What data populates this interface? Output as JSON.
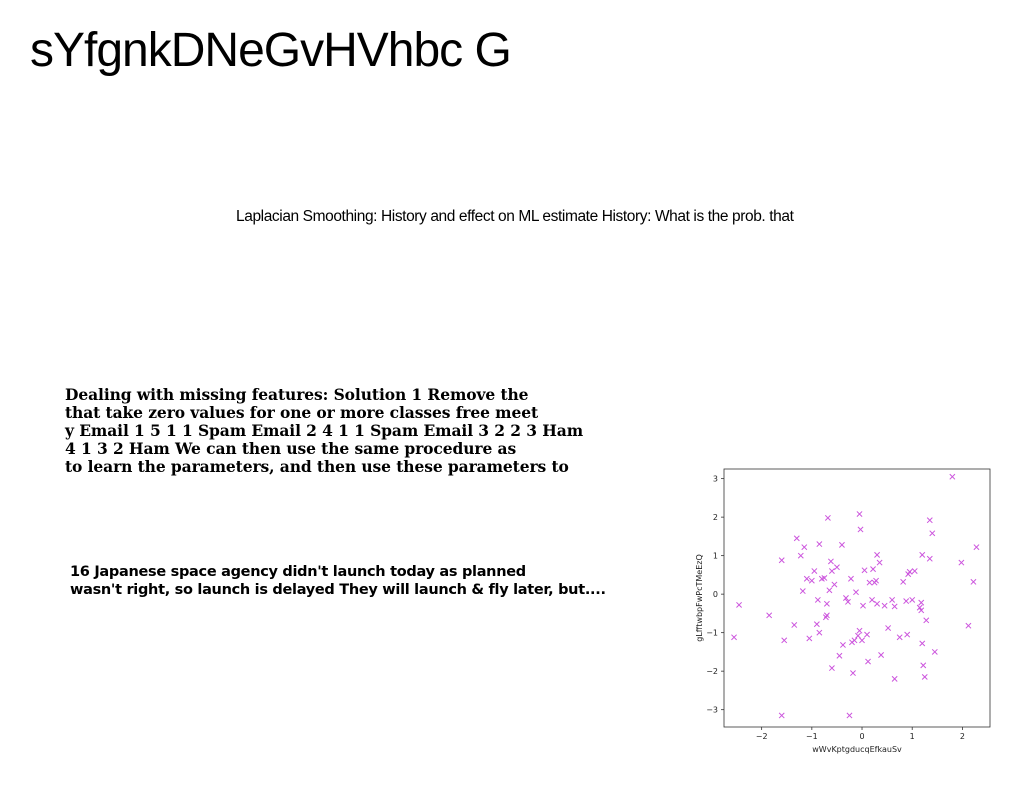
{
  "title": "sYfgnkDNeGvHVhbc G",
  "subtitle": "Laplacian Smoothing: History and effect on ML estimate History: What is the prob. that",
  "missing_features": {
    "lines": [
      "Dealing with missing features: Solution 1 Remove the",
      "that take zero values for one or more classes free meet",
      "y Email 1 5 1 1 Spam Email 2 4 1 1 Spam Email 3 2 2 3 Ham",
      "4 1 3 2 Ham We can then use the same procedure as",
      "to learn the parameters, and then use these parameters to"
    ]
  },
  "space_agency": {
    "lines": [
      "16 Japanese space agency didn't launch today as planned",
      "wasn't right, so launch is delayed They will launch & fly later, but...."
    ]
  },
  "chart_data": {
    "type": "scatter",
    "marker": "x",
    "color": "#cc55dd",
    "xlabel": "wWvKptgducqEfkauSv",
    "ylabel": "gLfftwbpFwPcTMeEzQ",
    "xlim": [
      -2.75,
      2.55
    ],
    "ylim": [
      -3.45,
      3.25
    ],
    "xticks": [
      -2,
      -1,
      0,
      1,
      2
    ],
    "yticks": [
      -3,
      -2,
      -1,
      0,
      1,
      2,
      3
    ],
    "xtick_labels": [
      "−2",
      "−1",
      "0",
      "1",
      "2"
    ],
    "ytick_labels": [
      "−3",
      "−2",
      "−1",
      "0",
      "1",
      "2",
      "3"
    ],
    "points": [
      [
        -2.55,
        -1.12
      ],
      [
        -2.45,
        -0.28
      ],
      [
        -1.85,
        -0.55
      ],
      [
        -1.6,
        0.88
      ],
      [
        -1.6,
        -3.15
      ],
      [
        -1.55,
        -1.2
      ],
      [
        -1.35,
        -0.8
      ],
      [
        -1.3,
        1.45
      ],
      [
        -1.22,
        1.0
      ],
      [
        -1.18,
        0.08
      ],
      [
        -1.15,
        1.22
      ],
      [
        -1.1,
        0.4
      ],
      [
        -1.05,
        -1.15
      ],
      [
        -1.0,
        0.35
      ],
      [
        -0.95,
        0.6
      ],
      [
        -0.9,
        -0.78
      ],
      [
        -0.88,
        -0.15
      ],
      [
        -0.85,
        1.3
      ],
      [
        -0.85,
        -1.0
      ],
      [
        -0.8,
        0.4
      ],
      [
        -0.75,
        0.42
      ],
      [
        -0.72,
        -0.6
      ],
      [
        -0.7,
        -0.25
      ],
      [
        -0.7,
        -0.55
      ],
      [
        -0.68,
        1.98
      ],
      [
        -0.65,
        0.1
      ],
      [
        -0.62,
        0.85
      ],
      [
        -0.6,
        0.6
      ],
      [
        -0.6,
        -1.92
      ],
      [
        -0.55,
        0.25
      ],
      [
        -0.5,
        0.7
      ],
      [
        -0.45,
        -1.6
      ],
      [
        -0.4,
        1.28
      ],
      [
        -0.38,
        -1.32
      ],
      [
        -0.32,
        -0.1
      ],
      [
        -0.28,
        -0.2
      ],
      [
        -0.25,
        -3.15
      ],
      [
        -0.22,
        0.4
      ],
      [
        -0.2,
        -1.25
      ],
      [
        -0.18,
        -2.05
      ],
      [
        -0.15,
        -1.2
      ],
      [
        -0.12,
        0.05
      ],
      [
        -0.08,
        -1.08
      ],
      [
        -0.05,
        -0.95
      ],
      [
        -0.05,
        2.08
      ],
      [
        -0.03,
        1.68
      ],
      [
        0.0,
        -1.2
      ],
      [
        0.02,
        -0.3
      ],
      [
        0.05,
        0.62
      ],
      [
        0.1,
        -1.05
      ],
      [
        0.12,
        -1.75
      ],
      [
        0.15,
        0.3
      ],
      [
        0.2,
        -0.15
      ],
      [
        0.22,
        0.65
      ],
      [
        0.25,
        0.3
      ],
      [
        0.28,
        0.35
      ],
      [
        0.3,
        -0.25
      ],
      [
        0.3,
        1.02
      ],
      [
        0.35,
        0.82
      ],
      [
        0.38,
        -1.58
      ],
      [
        0.45,
        -0.3
      ],
      [
        0.52,
        -0.88
      ],
      [
        0.6,
        -0.15
      ],
      [
        0.65,
        -0.32
      ],
      [
        0.65,
        -2.2
      ],
      [
        0.75,
        -1.12
      ],
      [
        0.82,
        0.32
      ],
      [
        0.88,
        -0.18
      ],
      [
        0.9,
        -1.05
      ],
      [
        0.92,
        0.52
      ],
      [
        0.95,
        0.58
      ],
      [
        1.0,
        -0.15
      ],
      [
        1.05,
        0.6
      ],
      [
        1.15,
        -0.35
      ],
      [
        1.2,
        1.02
      ],
      [
        1.2,
        -1.28
      ],
      [
        1.22,
        -1.85
      ],
      [
        1.25,
        -2.15
      ],
      [
        1.28,
        -0.68
      ],
      [
        1.35,
        0.92
      ],
      [
        1.35,
        1.92
      ],
      [
        1.4,
        1.58
      ],
      [
        1.45,
        -1.5
      ],
      [
        1.8,
        3.05
      ],
      [
        1.98,
        0.82
      ],
      [
        2.12,
        -0.82
      ],
      [
        2.22,
        0.32
      ],
      [
        2.28,
        1.22
      ],
      [
        1.18,
        -0.22
      ],
      [
        1.18,
        -0.42
      ]
    ]
  }
}
